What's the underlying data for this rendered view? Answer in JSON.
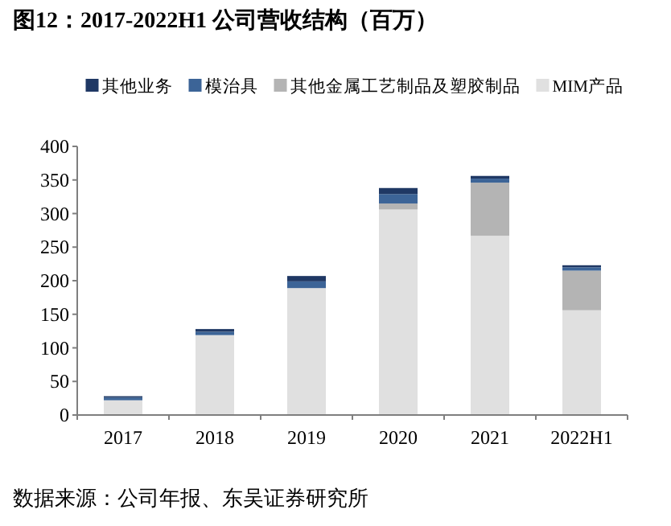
{
  "chart_data": {
    "type": "bar",
    "stacked": true,
    "title": "图12：2017-2022H1 公司营收结构（百万）",
    "categories": [
      "2017",
      "2018",
      "2019",
      "2020",
      "2021",
      "2022H1"
    ],
    "series": [
      {
        "name": "MIM产品",
        "color": "#e0e0e0",
        "values": [
          22,
          119,
          189,
          306,
          267,
          156
        ]
      },
      {
        "name": "其他金属工艺制品及塑胶制品",
        "color": "#b4b4b4",
        "values": [
          null,
          null,
          null,
          9,
          79,
          59
        ]
      },
      {
        "name": "模治具",
        "color": "#3c6497",
        "values": [
          4,
          5,
          10,
          14,
          6,
          5
        ]
      },
      {
        "name": "其他业务",
        "color": "#1f3864",
        "values": [
          2,
          4,
          8,
          9,
          4,
          3
        ]
      }
    ],
    "ylim": [
      0,
      400
    ],
    "yticks": [
      0,
      50,
      100,
      150,
      200,
      250,
      300,
      350,
      400
    ],
    "legend": "top",
    "grid": false,
    "annotations": [
      "数据来源：公司年报、东吴证券研究所"
    ]
  }
}
